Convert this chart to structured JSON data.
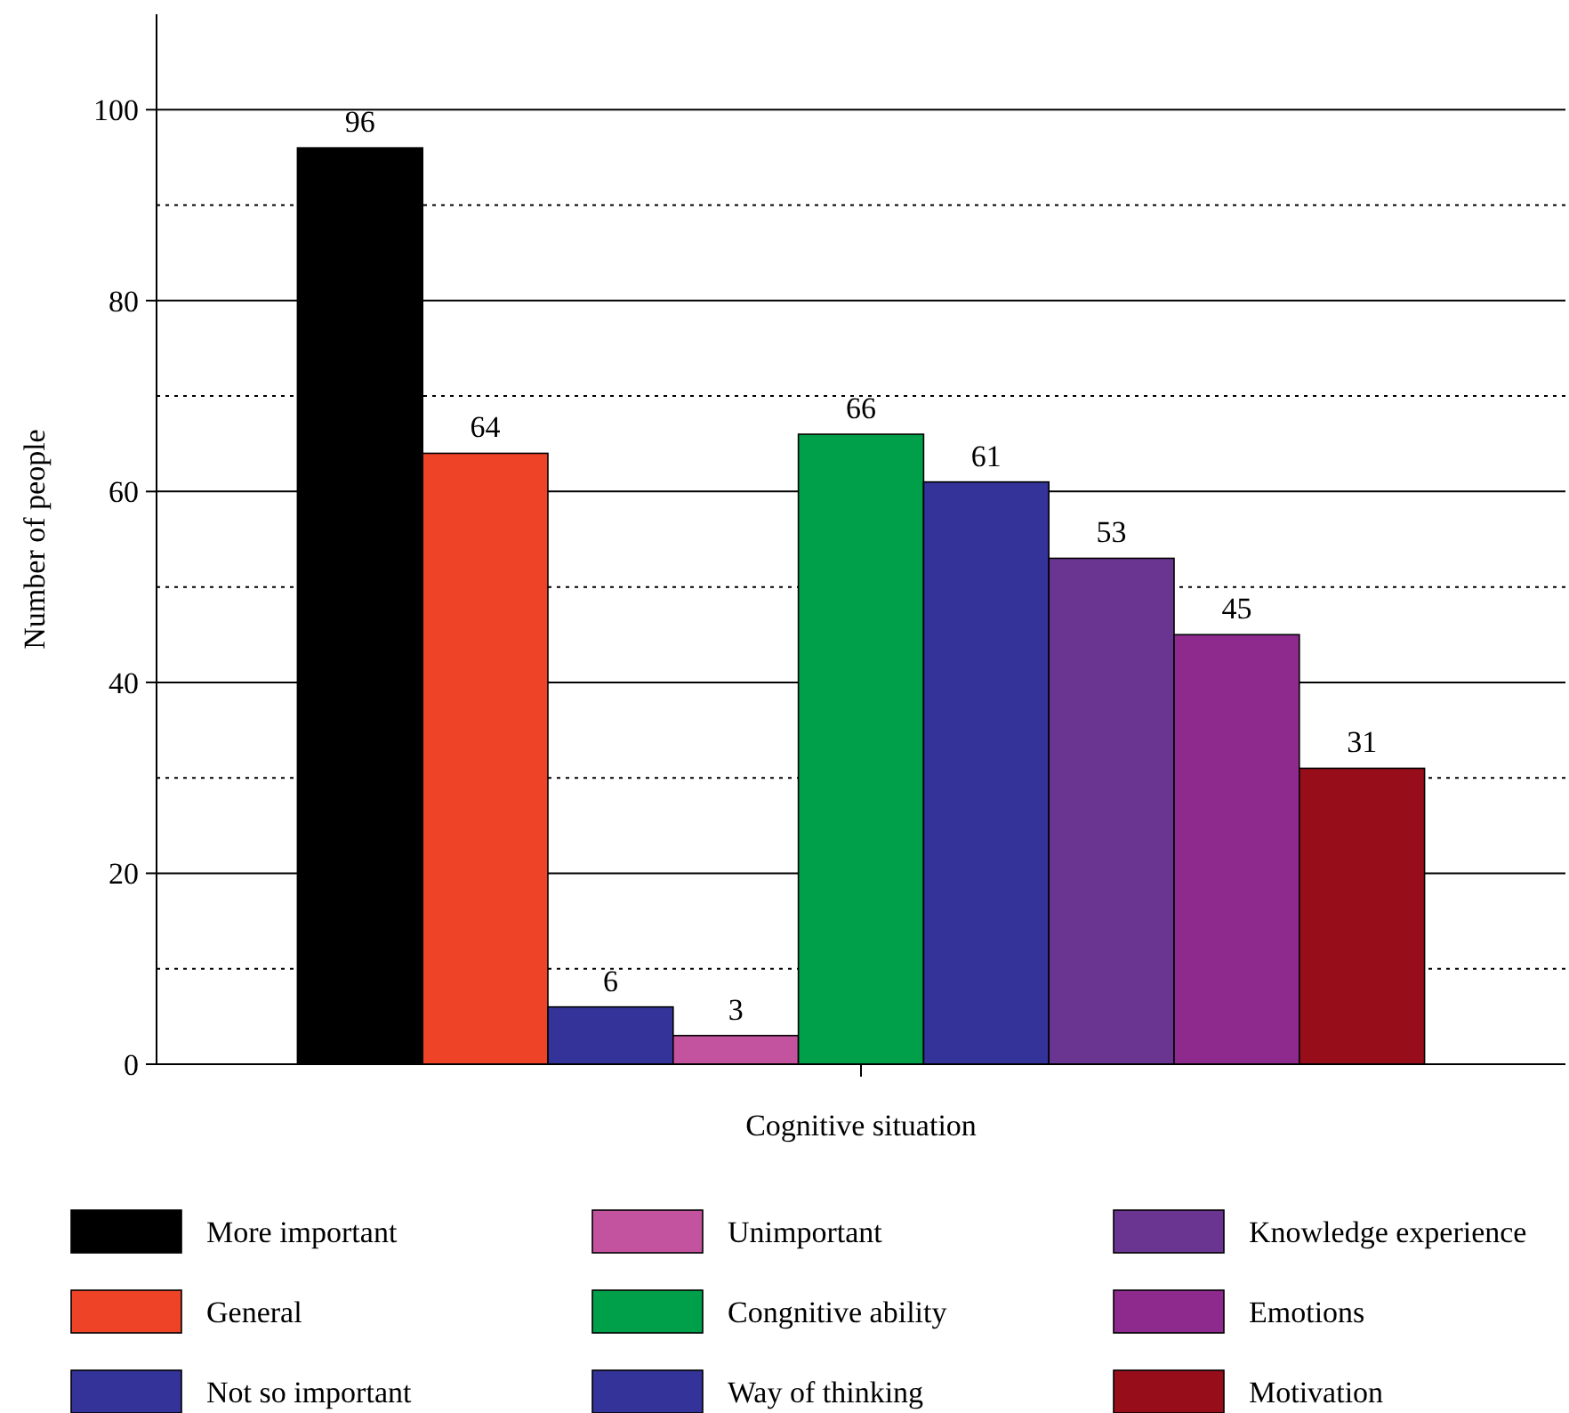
{
  "chart_data": {
    "type": "bar",
    "xlabel": "Cognitive situation",
    "ylabel": "Number of people",
    "categories": [
      null
    ],
    "series": [
      {
        "name": "More important",
        "color": "#000000",
        "values": [
          96
        ]
      },
      {
        "name": "General",
        "color": "#ee4327",
        "values": [
          64
        ]
      },
      {
        "name": "Not so important",
        "color": "#333399",
        "values": [
          6
        ]
      },
      {
        "name": "Unimportant",
        "color": "#c4539f",
        "values": [
          3
        ]
      },
      {
        "name": "Congnitive ability",
        "color": "#00a04a",
        "values": [
          66
        ]
      },
      {
        "name": "Way of thinking",
        "color": "#333399",
        "values": [
          61
        ]
      },
      {
        "name": "Knowledge experience",
        "color": "#6a3590",
        "values": [
          53
        ]
      },
      {
        "name": "Emotions",
        "color": "#8e2a8e",
        "values": [
          45
        ]
      },
      {
        "name": "Motivation",
        "color": "#970e1a",
        "values": [
          31
        ]
      }
    ],
    "ylim": [
      0,
      110
    ],
    "yticks": [
      0,
      {
        "value": 10,
        "label": null
      },
      20,
      {
        "value": 30,
        "label": null
      },
      40,
      {
        "value": 50,
        "label": null
      },
      60,
      {
        "value": 70,
        "label": null
      },
      80,
      {
        "value": 90,
        "label": null
      },
      100
    ],
    "grid": "y",
    "legend": "bottom",
    "data_labels": true
  }
}
